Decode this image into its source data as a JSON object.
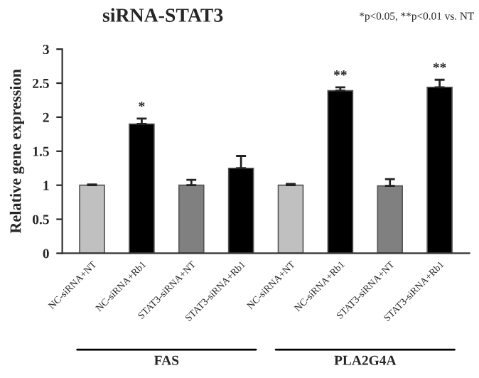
{
  "chart_data": {
    "type": "bar",
    "title": "siRNA-STAT3",
    "ylabel": "Relative gene expression",
    "categories": [
      "NC-siRNA+NT",
      "NC-siRNA+Rb1",
      "STAT3-siRNA+NT",
      "STAT3-siRNA+Rb1",
      "NC-siRNA+NT",
      "NC-siRNA+Rb1",
      "STAT3-siRNA+NT",
      "STAT3-siRNA+Rb1"
    ],
    "values": [
      1.0,
      1.9,
      1.0,
      1.25,
      1.0,
      2.39,
      0.99,
      2.44
    ],
    "colors": [
      "#c0c0c0",
      "#000000",
      "#808080",
      "#000000",
      "#c0c0c0",
      "#000000",
      "#808080",
      "#000000"
    ],
    "errors": [
      [
        1.0,
        1.01
      ],
      [
        1.9,
        1.98
      ],
      [
        1.0,
        1.08
      ],
      [
        1.25,
        1.43
      ],
      [
        1.0,
        1.02
      ],
      [
        2.39,
        2.44
      ],
      [
        0.99,
        1.09
      ],
      [
        2.44,
        2.55
      ]
    ],
    "value_labels": [
      null,
      "*",
      null,
      null,
      null,
      "**",
      null,
      "**"
    ],
    "ylim": [
      0,
      3
    ],
    "yticks": [
      0,
      0.5,
      1,
      1.5,
      2,
      2.5,
      3
    ],
    "grid": false,
    "legend": false,
    "annotations": [
      "*p<0.05, **p<0.01 vs. NT",
      "FAS",
      "PLA2G4A"
    ]
  }
}
